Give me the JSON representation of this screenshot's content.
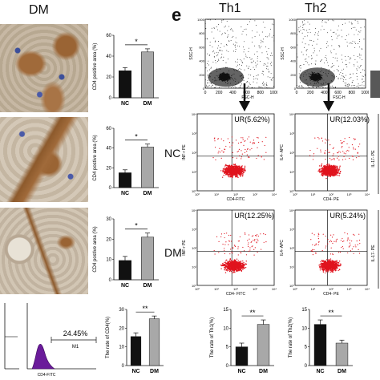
{
  "left": {
    "group_label": "DM",
    "ihc_tint": "#8a5a32",
    "bar_charts": [
      {
        "ylabel": "CD4 positive area (%)",
        "yticks": [
          "0",
          "20",
          "40",
          "60"
        ],
        "ymax": 60,
        "categories": [
          "NC",
          "DM"
        ],
        "values": [
          26,
          44
        ],
        "errors": [
          3,
          3
        ],
        "sig": "*"
      },
      {
        "ylabel": "CD4 postive area (%)",
        "yticks": [
          "0",
          "20",
          "40",
          "60"
        ],
        "ymax": 60,
        "categories": [
          "NC",
          "DM"
        ],
        "values": [
          15,
          41
        ],
        "errors": [
          3,
          3
        ],
        "sig": "*"
      },
      {
        "ylabel": "CD4 postive area (%)",
        "yticks": [
          "0",
          "10",
          "20",
          "30"
        ],
        "ymax": 30,
        "categories": [
          "NC",
          "DM"
        ],
        "values": [
          9.5,
          21
        ],
        "errors": [
          2,
          2
        ],
        "sig": "*"
      },
      {
        "ylabel": "The rate of CD4(%)",
        "yticks": [
          "0",
          "10",
          "20",
          "30"
        ],
        "ymax": 30,
        "categories": [
          "NC",
          "DM"
        ],
        "values": [
          15.5,
          25
        ],
        "errors": [
          2,
          1.5
        ],
        "sig": "**"
      }
    ],
    "histogram": {
      "gate_pct": "24.45%",
      "gate_name": "M1",
      "xlabel": "CD4-FITC",
      "fill": "#6a1b9a"
    }
  },
  "right": {
    "panel_letter": "e",
    "col_titles": [
      "Th1",
      "Th2"
    ],
    "row_labels": [
      "NC",
      "DM"
    ],
    "fsc_ssc": {
      "ylabel": "SSC-H",
      "xlabel": "FSC-H",
      "xticks": [
        "0",
        "200",
        "400",
        "600",
        "800",
        "1000"
      ],
      "yticks": [
        "0",
        "200",
        "400",
        "600",
        "800",
        "1000"
      ]
    },
    "quadrants": [
      [
        {
          "ur": "UR(5.62%)",
          "ylabel": "INF-r PE",
          "xlabel": "CD4-FITC"
        },
        {
          "ur": "UR(12.03%)",
          "ylabel": "IL4- APC",
          "xlabel": "CD4- PE"
        }
      ],
      [
        {
          "ur": "UR(12.25%)",
          "ylabel": "INF-r PE",
          "xlabel": "CD4- FITC"
        },
        {
          "ur": "UR(5.24%)",
          "ylabel": "IL4- APC",
          "xlabel": "CD4- PE"
        }
      ]
    ],
    "partial_ylabel": "IL-17- PE",
    "dot_color": "#e0141e",
    "bottom_charts": [
      {
        "ylabel": "The rate of Th1(%)",
        "yticks": [
          "0",
          "5",
          "10",
          "15"
        ],
        "ymax": 15,
        "categories": [
          "NC",
          "DM"
        ],
        "values": [
          5,
          11
        ],
        "errors": [
          1,
          1.2
        ],
        "sig": "**"
      },
      {
        "ylabel": "The rate of Th2(%)",
        "yticks": [
          "0",
          "5",
          "10",
          "15"
        ],
        "ymax": 15,
        "categories": [
          "NC",
          "DM"
        ],
        "values": [
          11,
          6
        ],
        "errors": [
          1.2,
          0.8
        ],
        "sig": "**"
      }
    ]
  },
  "chart_data": [
    {
      "type": "bar",
      "categories": [
        "NC",
        "DM"
      ],
      "series": [
        {
          "values": [
            26,
            44
          ]
        }
      ],
      "ylabel": "CD4 positive area (%)",
      "ylim": [
        0,
        60
      ]
    },
    {
      "type": "bar",
      "categories": [
        "NC",
        "DM"
      ],
      "series": [
        {
          "values": [
            15,
            41
          ]
        }
      ],
      "ylabel": "CD4 postive area (%)",
      "ylim": [
        0,
        60
      ]
    },
    {
      "type": "bar",
      "categories": [
        "NC",
        "DM"
      ],
      "series": [
        {
          "values": [
            9.5,
            21
          ]
        }
      ],
      "ylabel": "CD4 postive area (%)",
      "ylim": [
        0,
        30
      ]
    },
    {
      "type": "bar",
      "categories": [
        "NC",
        "DM"
      ],
      "series": [
        {
          "values": [
            15.5,
            25
          ]
        }
      ],
      "ylabel": "The rate of CD4(%)",
      "ylim": [
        0,
        30
      ]
    },
    {
      "type": "bar",
      "categories": [
        "NC",
        "DM"
      ],
      "series": [
        {
          "values": [
            5,
            11
          ]
        }
      ],
      "ylabel": "The rate of Th1(%)",
      "ylim": [
        0,
        15
      ]
    },
    {
      "type": "bar",
      "categories": [
        "NC",
        "DM"
      ],
      "series": [
        {
          "values": [
            11,
            6
          ]
        }
      ],
      "ylabel": "The rate of Th2(%)",
      "ylim": [
        0,
        15
      ]
    }
  ]
}
